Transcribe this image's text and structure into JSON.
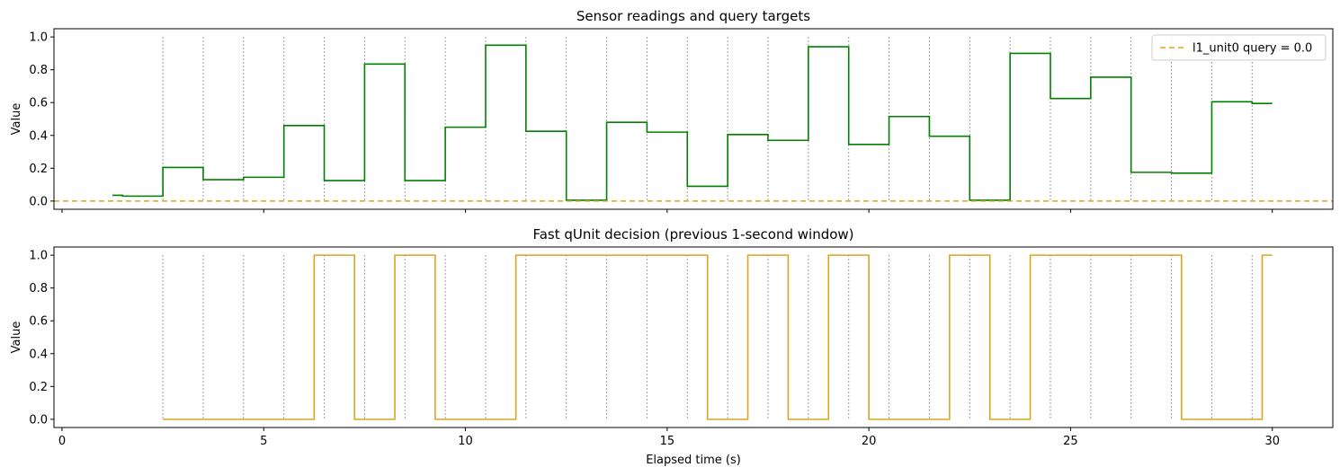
{
  "chart_data": [
    {
      "type": "line",
      "title": "Sensor readings and query targets",
      "ylabel": "Value",
      "xlabel": "",
      "xlim": [
        -0.2,
        31.5
      ],
      "ylim": [
        -0.05,
        1.05
      ],
      "xticks": [
        0,
        5,
        10,
        15,
        20,
        25,
        30
      ],
      "xtick_labels_visible": false,
      "yticks": [
        0.0,
        0.2,
        0.4,
        0.6,
        0.8,
        1.0
      ],
      "ytick_labels": [
        "0.0",
        "0.2",
        "0.4",
        "0.6",
        "0.8",
        "1.0"
      ],
      "vlines": [
        2.5,
        3.5,
        4.5,
        5.5,
        6.5,
        7.5,
        8.5,
        9.5,
        10.5,
        11.5,
        12.5,
        13.5,
        14.5,
        15.5,
        16.5,
        17.5,
        18.5,
        19.5,
        20.5,
        21.5,
        22.5,
        23.5,
        24.5,
        25.5,
        26.5,
        27.5,
        28.5,
        29.5
      ],
      "vline_color": "#808080",
      "legend": {
        "placement": "upper right",
        "entries": [
          "l1_unit0 query = 0.0"
        ]
      },
      "series": [
        {
          "style": "step",
          "color": "#008000",
          "x": [
            1.25,
            1.5,
            2.5,
            3.5,
            4.5,
            5.5,
            6.5,
            7.5,
            8.5,
            9.5,
            10.5,
            11.5,
            12.5,
            13.5,
            14.5,
            15.5,
            16.5,
            17.5,
            18.5,
            19.5,
            20.5,
            21.5,
            22.5,
            23.5,
            24.5,
            25.5,
            26.5,
            27.5,
            28.5,
            29.5,
            30.0
          ],
          "y": [
            0.035,
            0.03,
            0.205,
            0.13,
            0.145,
            0.46,
            0.125,
            0.835,
            0.125,
            0.45,
            0.95,
            0.425,
            0.005,
            0.48,
            0.42,
            0.09,
            0.405,
            0.37,
            0.94,
            0.345,
            0.515,
            0.395,
            0.005,
            0.9,
            0.625,
            0.755,
            0.175,
            0.17,
            0.605,
            0.595,
            0.595
          ]
        },
        {
          "name": "l1_unit0 query = 0.0",
          "style": "hline",
          "dash": "6,4",
          "color": "#DAA520",
          "y": [
            0.0
          ]
        }
      ]
    },
    {
      "type": "line",
      "title": "Fast qUnit decision (previous 1-second window)",
      "ylabel": "Value",
      "xlabel": "Elapsed time (s)",
      "xlim": [
        -0.2,
        31.5
      ],
      "ylim": [
        -0.05,
        1.05
      ],
      "xticks": [
        0,
        5,
        10,
        15,
        20,
        25,
        30
      ],
      "xtick_labels": [
        "0",
        "5",
        "10",
        "15",
        "20",
        "25",
        "30"
      ],
      "yticks": [
        0.0,
        0.2,
        0.4,
        0.6,
        0.8,
        1.0
      ],
      "ytick_labels": [
        "0.0",
        "0.2",
        "0.4",
        "0.6",
        "0.8",
        "1.0"
      ],
      "vlines": [
        2.5,
        3.5,
        4.5,
        5.5,
        6.5,
        7.5,
        8.5,
        9.5,
        10.5,
        11.5,
        12.5,
        13.5,
        14.5,
        15.5,
        16.5,
        17.5,
        18.5,
        19.5,
        20.5,
        21.5,
        22.5,
        23.5,
        24.5,
        25.5,
        26.5,
        27.5,
        28.5,
        29.5
      ],
      "vline_color": "#808080",
      "series": [
        {
          "style": "step",
          "color": "#DAA520",
          "x": [
            2.5,
            6.25,
            7.25,
            8.25,
            9.25,
            11.25,
            16.0,
            17.0,
            18.0,
            19.0,
            20.0,
            22.0,
            23.0,
            24.0,
            27.75,
            29.75,
            30.0
          ],
          "y": [
            0,
            1,
            0,
            1,
            0,
            1,
            0,
            1,
            0,
            1,
            0,
            1,
            0,
            1,
            0,
            1,
            1
          ]
        }
      ]
    }
  ]
}
